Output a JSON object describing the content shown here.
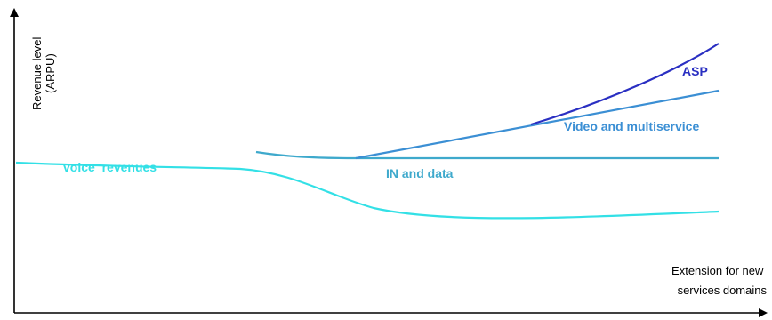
{
  "y_axis": {
    "title_lines": [
      "Revenue level",
      "(ARPU)"
    ]
  },
  "x_axis": {
    "title_lines": [
      "Extension for new",
      "services domains"
    ]
  },
  "labels": {
    "voice": "voice  revenues",
    "in_data": "IN and data",
    "video": "Video and multiservice",
    "asp": "ASP"
  },
  "colors": {
    "voice": "#33e0e6",
    "in_data": "#3ea9cc",
    "video": "#3b8fd4",
    "asp": "#2a2fc2",
    "axis": "#000000"
  }
}
